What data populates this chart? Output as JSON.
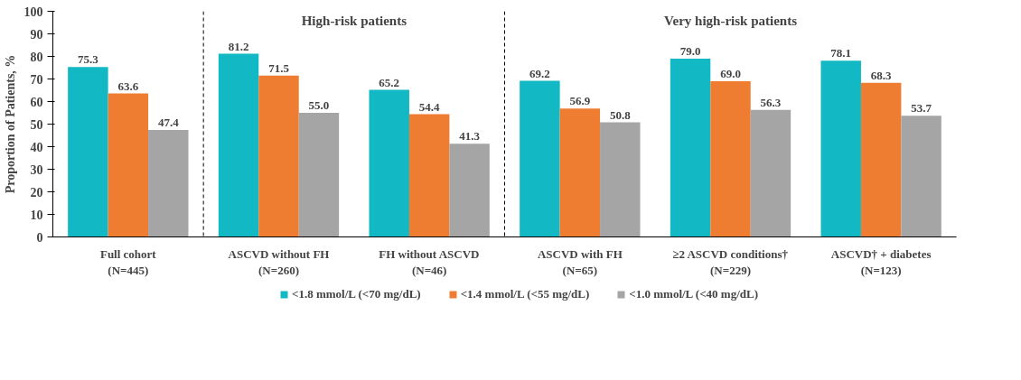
{
  "chart_data": {
    "type": "bar",
    "ylabel": "Proportion of Patients, %",
    "categories": [
      "Full cohort\n(N=445)",
      "ASCVD without FH\n(N=260)",
      "FH without ASCVD\n(N=46)",
      "ASCVD with FH\n(N=65)",
      "≥2 ASCVD conditions†\n(N=229)",
      "ASCVD† + diabetes\n(N=123)"
    ],
    "series": [
      {
        "name": "<1.8 mmol/L (<70 mg/dL)",
        "color": "#12b8c4",
        "values": [
          75.3,
          81.2,
          65.2,
          69.2,
          79.0,
          78.1
        ]
      },
      {
        "name": "<1.4 mmol/L (<55 mg/dL)",
        "color": "#ef7d31",
        "values": [
          63.6,
          71.5,
          54.4,
          56.9,
          69.0,
          68.3
        ]
      },
      {
        "name": "<1.0 mmol/L (<40 mg/dL)",
        "color": "#a5a5a5",
        "values": [
          47.4,
          55.0,
          41.3,
          50.8,
          56.3,
          53.7
        ]
      }
    ],
    "ylim": [
      0,
      100
    ],
    "yticks": [
      0,
      10,
      20,
      30,
      40,
      50,
      60,
      70,
      80,
      90,
      100
    ],
    "value_labels": [
      [
        "75.3",
        "81.2",
        "65.2",
        "69.2",
        "79.0",
        "78.1"
      ],
      [
        "63.6",
        "71.5",
        "54.4",
        "56.9",
        "69.0",
        "68.3"
      ],
      [
        "47.4",
        "55.0",
        "41.3",
        "50.8",
        "56.3",
        "53.7"
      ]
    ],
    "annotations": [
      "High-risk patients",
      "Very high-risk patients"
    ],
    "legend": "bottom"
  }
}
